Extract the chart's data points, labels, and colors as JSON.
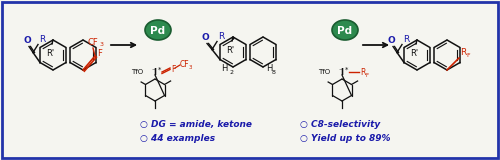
{
  "bg": "#f5f5f0",
  "border_color": "#2233aa",
  "red": "#cc2200",
  "blue": "#1a1aaa",
  "dark": "#111111",
  "green_dark": "#1a5c30",
  "green_fill": "#2d8a4e",
  "white": "#ffffff",
  "bullet_color": "#1a1aaa",
  "bullets": [
    [
      "○ DG = amide, ketone",
      "○ C8-selectivity"
    ],
    [
      "○ 44 examples",
      "○ Yield up to 89%"
    ]
  ]
}
